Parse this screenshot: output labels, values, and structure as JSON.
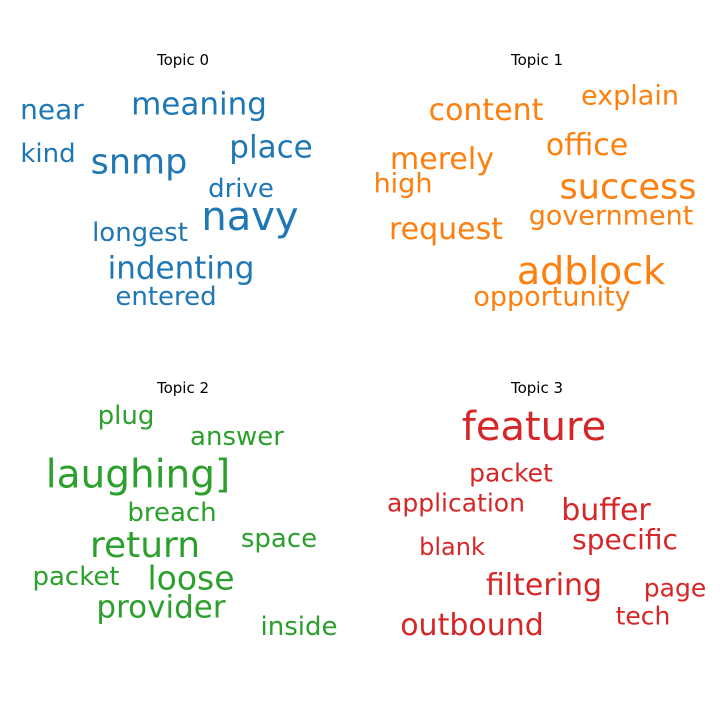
{
  "chart_data": {
    "type": "wordcloud",
    "panels": [
      {
        "title": "Topic 0",
        "color": "#1f77b4",
        "words": [
          {
            "text": "navy",
            "weight": 1.0
          },
          {
            "text": "snmp",
            "weight": 0.85
          },
          {
            "text": "meaning",
            "weight": 0.78
          },
          {
            "text": "place",
            "weight": 0.78
          },
          {
            "text": "indenting",
            "weight": 0.78
          },
          {
            "text": "near",
            "weight": 0.72
          },
          {
            "text": "kind",
            "weight": 0.66
          },
          {
            "text": "drive",
            "weight": 0.66
          },
          {
            "text": "longest",
            "weight": 0.66
          },
          {
            "text": "entered",
            "weight": 0.66
          }
        ]
      },
      {
        "title": "Topic 1",
        "color": "#ff7f0e",
        "words": [
          {
            "text": "adblock",
            "weight": 1.0
          },
          {
            "text": "success",
            "weight": 0.92
          },
          {
            "text": "content",
            "weight": 0.8
          },
          {
            "text": "office",
            "weight": 0.8
          },
          {
            "text": "merely",
            "weight": 0.78
          },
          {
            "text": "request",
            "weight": 0.78
          },
          {
            "text": "explain",
            "weight": 0.73
          },
          {
            "text": "high",
            "weight": 0.73
          },
          {
            "text": "government",
            "weight": 0.73
          },
          {
            "text": "opportunity",
            "weight": 0.73
          }
        ]
      },
      {
        "title": "Topic 2",
        "color": "#2ca02c",
        "words": [
          {
            "text": "laughing]",
            "weight": 1.0
          },
          {
            "text": "return",
            "weight": 0.93
          },
          {
            "text": "loose",
            "weight": 0.85
          },
          {
            "text": "provider",
            "weight": 0.8
          },
          {
            "text": "packet",
            "weight": 0.7
          },
          {
            "text": "plug",
            "weight": 0.66
          },
          {
            "text": "answer",
            "weight": 0.66
          },
          {
            "text": "breach",
            "weight": 0.66
          },
          {
            "text": "space",
            "weight": 0.66
          },
          {
            "text": "inside",
            "weight": 0.66
          }
        ]
      },
      {
        "title": "Topic 3",
        "color": "#d62728",
        "words": [
          {
            "text": "feature",
            "weight": 1.0
          },
          {
            "text": "buffer",
            "weight": 0.75
          },
          {
            "text": "filtering",
            "weight": 0.75
          },
          {
            "text": "outbound",
            "weight": 0.75
          },
          {
            "text": "specific",
            "weight": 0.7
          },
          {
            "text": "packet",
            "weight": 0.62
          },
          {
            "text": "application",
            "weight": 0.62
          },
          {
            "text": "page",
            "weight": 0.62
          },
          {
            "text": "tech",
            "weight": 0.62
          },
          {
            "text": "blank",
            "weight": 0.58
          }
        ]
      }
    ]
  }
}
